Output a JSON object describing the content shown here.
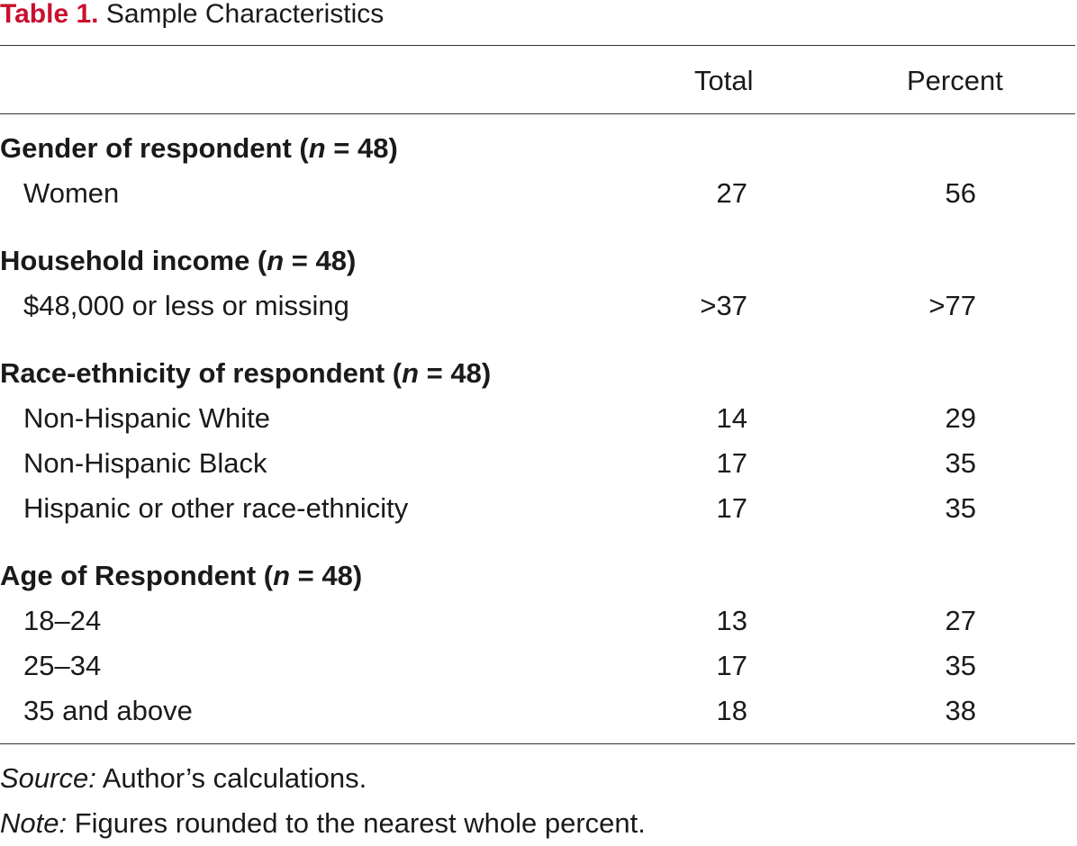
{
  "caption": {
    "label": "Table 1.",
    "title": "Sample Characteristics"
  },
  "columns": {
    "total": "Total",
    "percent": "Percent"
  },
  "groups": [
    {
      "heading_prefix": "Gender of respondent (",
      "heading_n": "n",
      "heading_suffix": " = 48)",
      "rows": [
        {
          "label": "Women",
          "total": "27",
          "percent": "56"
        }
      ]
    },
    {
      "heading_prefix": "Household income (",
      "heading_n": "n",
      "heading_suffix": " = 48)",
      "rows": [
        {
          "label": "$48,000 or less or missing",
          "total": ">37",
          "percent": ">77"
        }
      ]
    },
    {
      "heading_prefix": "Race-ethnicity of respondent (",
      "heading_n": "n",
      "heading_suffix": " = 48)",
      "rows": [
        {
          "label": "Non-Hispanic White",
          "total": "14",
          "percent": "29"
        },
        {
          "label": "Non-Hispanic Black",
          "total": "17",
          "percent": "35"
        },
        {
          "label": "Hispanic or other race-ethnicity",
          "total": "17",
          "percent": "35"
        }
      ]
    },
    {
      "heading_prefix": "Age of Respondent (",
      "heading_n": "n",
      "heading_suffix": " = 48)",
      "rows": [
        {
          "label": "18–24",
          "total": "13",
          "percent": "27"
        },
        {
          "label": "25–34",
          "total": "17",
          "percent": "35"
        },
        {
          "label": "35 and above",
          "total": "18",
          "percent": "38"
        }
      ]
    }
  ],
  "notes": {
    "source_prefix": "Source:",
    "source_text": " Author’s calculations.",
    "note_prefix": "Note:",
    "note_text": " Figures rounded to the nearest whole percent."
  },
  "colors": {
    "caption_label": "#c8102e",
    "text": "#1a1a1a",
    "rule": "#333333"
  }
}
